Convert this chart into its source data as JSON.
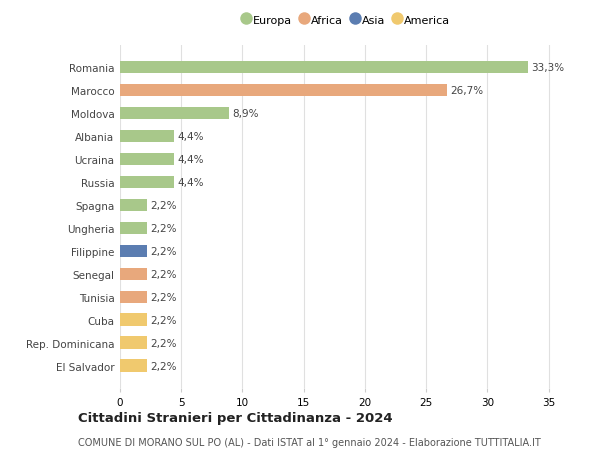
{
  "countries": [
    "Romania",
    "Marocco",
    "Moldova",
    "Albania",
    "Ucraina",
    "Russia",
    "Spagna",
    "Ungheria",
    "Filippine",
    "Senegal",
    "Tunisia",
    "Cuba",
    "Rep. Dominicana",
    "El Salvador"
  ],
  "values": [
    33.3,
    26.7,
    8.9,
    4.4,
    4.4,
    4.4,
    2.2,
    2.2,
    2.2,
    2.2,
    2.2,
    2.2,
    2.2,
    2.2
  ],
  "labels": [
    "33,3%",
    "26,7%",
    "8,9%",
    "4,4%",
    "4,4%",
    "4,4%",
    "2,2%",
    "2,2%",
    "2,2%",
    "2,2%",
    "2,2%",
    "2,2%",
    "2,2%",
    "2,2%"
  ],
  "continents": [
    "Europa",
    "Africa",
    "Europa",
    "Europa",
    "Europa",
    "Europa",
    "Europa",
    "Europa",
    "Asia",
    "Africa",
    "Africa",
    "America",
    "America",
    "America"
  ],
  "continent_colors": {
    "Europa": "#a8c88a",
    "Africa": "#e8a87c",
    "Asia": "#5b7db1",
    "America": "#f0c96e"
  },
  "legend_order": [
    "Europa",
    "Africa",
    "Asia",
    "America"
  ],
  "xlim": [
    0,
    37
  ],
  "xticks": [
    0,
    5,
    10,
    15,
    20,
    25,
    30,
    35
  ],
  "title": "Cittadini Stranieri per Cittadinanza - 2024",
  "subtitle": "COMUNE DI MORANO SUL PO (AL) - Dati ISTAT al 1° gennaio 2024 - Elaborazione TUTTITALIA.IT",
  "title_fontsize": 9.5,
  "subtitle_fontsize": 7.0,
  "background_color": "#ffffff",
  "grid_color": "#e0e0e0",
  "bar_height": 0.55
}
